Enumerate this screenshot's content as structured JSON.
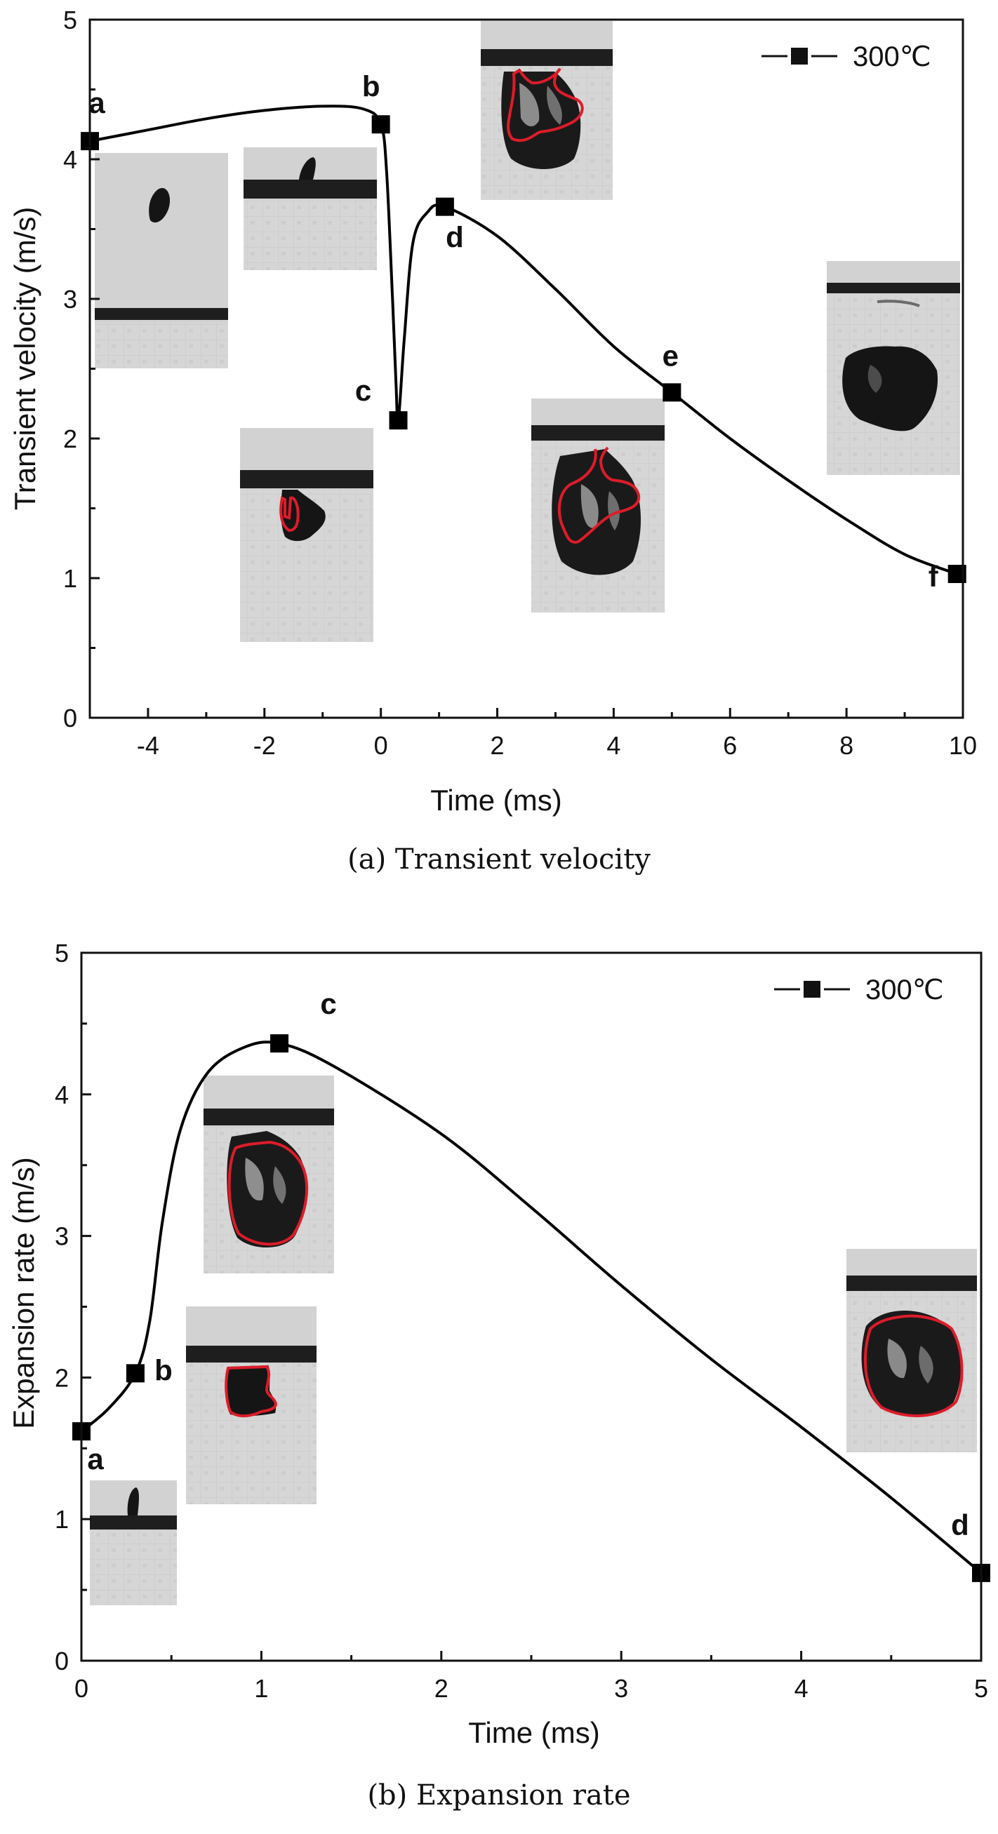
{
  "chart_data": [
    {
      "type": "line",
      "panel": "a",
      "caption": "(a) Transient velocity",
      "xlabel": "Time (ms)",
      "ylabel": "Transient velocity (m/s)",
      "xlim": [
        -5,
        10
      ],
      "ylim": [
        0,
        5
      ],
      "xticks": [
        -4,
        -2,
        0,
        2,
        4,
        6,
        8,
        10
      ],
      "xtick_labels": [
        "-4",
        "-2",
        "0",
        "2",
        "4",
        "6",
        "8",
        "10"
      ],
      "yticks": [
        0,
        1,
        2,
        3,
        4,
        5
      ],
      "ytick_labels": [
        "0",
        "1",
        "2",
        "3",
        "4",
        "5"
      ],
      "legend": "300℃",
      "legend_position": "top-right",
      "series": [
        {
          "name": "300℃",
          "points": [
            {
              "label": "a",
              "x": -5.0,
              "y": 4.13
            },
            {
              "label": "b",
              "x": 0.0,
              "y": 4.25
            },
            {
              "label": "c",
              "x": 0.3,
              "y": 2.13
            },
            {
              "label": "d",
              "x": 1.1,
              "y": 3.66
            },
            {
              "label": "e",
              "x": 5.0,
              "y": 2.33
            },
            {
              "label": "f",
              "x": 9.9,
              "y": 1.03
            }
          ],
          "curve": [
            [
              -5.0,
              4.13
            ],
            [
              -4.0,
              4.21
            ],
            [
              -3.0,
              4.29
            ],
            [
              -2.0,
              4.35
            ],
            [
              -1.0,
              4.38
            ],
            [
              -0.3,
              4.36
            ],
            [
              0.0,
              4.25
            ],
            [
              0.1,
              3.9
            ],
            [
              0.2,
              3.0
            ],
            [
              0.26,
              2.4
            ],
            [
              0.3,
              2.13
            ],
            [
              0.4,
              2.7
            ],
            [
              0.55,
              3.4
            ],
            [
              0.8,
              3.62
            ],
            [
              1.1,
              3.66
            ],
            [
              2.0,
              3.45
            ],
            [
              3.0,
              3.07
            ],
            [
              4.0,
              2.66
            ],
            [
              5.0,
              2.33
            ],
            [
              6.0,
              2.0
            ],
            [
              7.0,
              1.7
            ],
            [
              8.0,
              1.42
            ],
            [
              9.0,
              1.17
            ],
            [
              9.9,
              1.03
            ]
          ]
        }
      ],
      "insets": [
        {
          "name": "droplet-frame-a",
          "contour": false
        },
        {
          "name": "droplet-frame-b",
          "contour": false
        },
        {
          "name": "droplet-frame-c",
          "contour": true
        },
        {
          "name": "droplet-frame-top",
          "contour": true
        },
        {
          "name": "droplet-frame-e",
          "contour": true
        },
        {
          "name": "droplet-frame-f",
          "contour": false
        }
      ]
    },
    {
      "type": "line",
      "panel": "b",
      "caption": "(b) Expansion rate",
      "xlabel": "Time (ms)",
      "ylabel": "Expansion rate (m/s)",
      "xlim": [
        0,
        5
      ],
      "ylim": [
        0,
        5
      ],
      "xticks": [
        0,
        1,
        2,
        3,
        4,
        5
      ],
      "xtick_labels": [
        "0",
        "1",
        "2",
        "3",
        "4",
        "5"
      ],
      "yticks": [
        0,
        1,
        2,
        3,
        4,
        5
      ],
      "ytick_labels": [
        "0",
        "1",
        "2",
        "3",
        "4",
        "5"
      ],
      "legend": "300℃",
      "legend_position": "top-right",
      "series": [
        {
          "name": "300℃",
          "points": [
            {
              "label": "a",
              "x": 0.0,
              "y": 1.62
            },
            {
              "label": "b",
              "x": 0.3,
              "y": 2.03
            },
            {
              "label": "c",
              "x": 1.1,
              "y": 4.36
            },
            {
              "label": "d",
              "x": 5.0,
              "y": 0.62
            }
          ],
          "curve": [
            [
              0.0,
              1.62
            ],
            [
              0.15,
              1.78
            ],
            [
              0.3,
              2.03
            ],
            [
              0.38,
              2.4
            ],
            [
              0.45,
              3.1
            ],
            [
              0.55,
              3.75
            ],
            [
              0.7,
              4.15
            ],
            [
              0.9,
              4.33
            ],
            [
              1.1,
              4.36
            ],
            [
              1.4,
              4.2
            ],
            [
              2.0,
              3.72
            ],
            [
              2.5,
              3.2
            ],
            [
              3.0,
              2.65
            ],
            [
              3.5,
              2.13
            ],
            [
              4.0,
              1.65
            ],
            [
              4.5,
              1.15
            ],
            [
              5.0,
              0.62
            ]
          ]
        }
      ],
      "insets": [
        {
          "name": "droplet-frame-a",
          "contour": false
        },
        {
          "name": "droplet-frame-b",
          "contour": true
        },
        {
          "name": "droplet-frame-c",
          "contour": true
        },
        {
          "name": "droplet-frame-d",
          "contour": true
        }
      ]
    }
  ],
  "colors": {
    "line": "#000000",
    "contour": "#dd1c2a",
    "photo_bg": "#d4d4d4",
    "photo_bar": "#1e1e1e",
    "photo_blob": "#151515"
  }
}
